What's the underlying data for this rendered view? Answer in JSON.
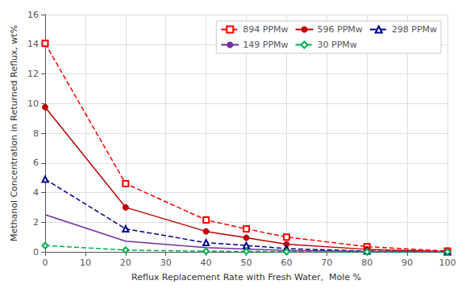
{
  "chart_data": {
    "type": "line",
    "xlabel": "Reflux Replacement Rate with Fresh Water,  Mole %",
    "ylabel": "Methanol Concentration in Returned Reflux, wt%",
    "xlim": [
      0,
      100
    ],
    "ylim": [
      0,
      16
    ],
    "xticks": [
      0,
      10,
      20,
      30,
      40,
      50,
      60,
      70,
      80,
      90,
      100
    ],
    "yticks": [
      0,
      2,
      4,
      6,
      8,
      10,
      12,
      14,
      16
    ],
    "grid": true,
    "legend": "upper right",
    "x": [
      0,
      20,
      40,
      50,
      60,
      80,
      100
    ],
    "series": [
      {
        "name": "894 PPMw",
        "color": "#FF0000",
        "line_style": "dashed",
        "marker": "open square",
        "values": [
          14.05,
          4.6,
          2.15,
          1.55,
          1.0,
          0.35,
          0.05
        ]
      },
      {
        "name": "596 PPMw",
        "color": "#C00000",
        "line_style": "solid",
        "marker": "circle",
        "values": [
          9.75,
          3.0,
          1.38,
          0.95,
          0.52,
          0.17,
          0.02
        ]
      },
      {
        "name": "298 PPMw",
        "color": "#00008B",
        "line_style": "dashed",
        "marker": "open triangle",
        "values": [
          4.9,
          1.55,
          0.62,
          0.43,
          0.22,
          0.05,
          0.0
        ]
      },
      {
        "name": "149 PPMw",
        "color": "#7030A0",
        "line_style": "solid",
        "marker": "none",
        "values": [
          2.5,
          0.72,
          0.28,
          0.19,
          0.1,
          0.025,
          0.0
        ]
      },
      {
        "name": "30 PPMw",
        "color": "#00B050",
        "line_style": "dashed",
        "marker": "open diamond",
        "values": [
          0.42,
          0.12,
          0.04,
          0.03,
          0.01,
          0.0,
          0.0
        ]
      }
    ]
  }
}
